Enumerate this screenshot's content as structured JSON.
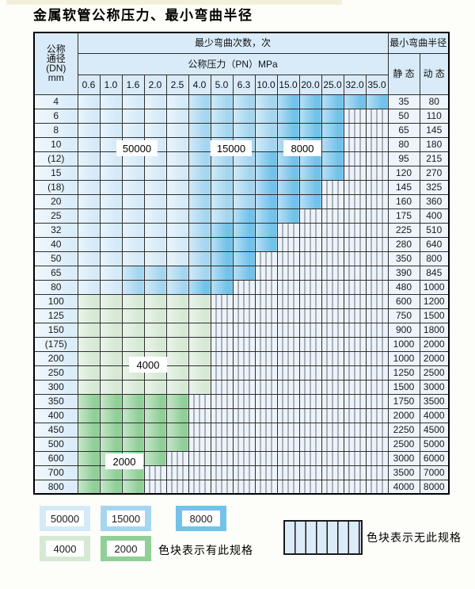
{
  "title": "金属软管公称压力、最小弯曲半径",
  "header": {
    "dn_lines": [
      "公称",
      "通径",
      "(DN)",
      "mm"
    ],
    "cycles_label": "最少弯曲次数，次",
    "pressure_label": "公称压力（PN）MPa",
    "radius_label": "最小弯曲半径",
    "static_label": "静 态",
    "dynamic_label": "动 态",
    "pressures": [
      "0.6",
      "1.0",
      "1.6",
      "2.0",
      "2.5",
      "4.0",
      "5.0",
      "6.3",
      "10.0",
      "15.0",
      "20.0",
      "25.0",
      "32.0",
      "35.0"
    ]
  },
  "zone_colors": {
    "b1": "#d5eaf8",
    "b2": "#a5d6f0",
    "b3": "#72c2ea",
    "g1": "#d6e9d5",
    "g2": "#90cf98"
  },
  "zone_meanings": {
    "b1": "50000",
    "b2": "15000",
    "b3": "8000",
    "g1": "4000",
    "g2": "2000",
    "h": "无此规格"
  },
  "rows": [
    {
      "dn": "4",
      "zones": [
        [
          "b1",
          5
        ],
        [
          "b2",
          4
        ],
        [
          "b3",
          5
        ]
      ],
      "static": "35",
      "dynamic": "80"
    },
    {
      "dn": "6",
      "zones": [
        [
          "b1",
          5
        ],
        [
          "b2",
          4
        ],
        [
          "b3",
          3
        ]
      ],
      "static": "50",
      "dynamic": "110"
    },
    {
      "dn": "8",
      "zones": [
        [
          "b1",
          5
        ],
        [
          "b2",
          4
        ],
        [
          "b3",
          3
        ]
      ],
      "static": "65",
      "dynamic": "145"
    },
    {
      "dn": "10",
      "zones": [
        [
          "b1",
          5
        ],
        [
          "b2",
          4
        ],
        [
          "b3",
          3
        ]
      ],
      "static": "80",
      "dynamic": "180"
    },
    {
      "dn": "(12)",
      "zones": [
        [
          "b1",
          5
        ],
        [
          "b2",
          3
        ],
        [
          "b3",
          4
        ]
      ],
      "static": "95",
      "dynamic": "215"
    },
    {
      "dn": "15",
      "zones": [
        [
          "b1",
          5
        ],
        [
          "b2",
          3
        ],
        [
          "b3",
          4
        ]
      ],
      "static": "120",
      "dynamic": "270"
    },
    {
      "dn": "(18)",
      "zones": [
        [
          "b1",
          5
        ],
        [
          "b2",
          3
        ],
        [
          "b3",
          3
        ]
      ],
      "static": "145",
      "dynamic": "325"
    },
    {
      "dn": "20",
      "zones": [
        [
          "b1",
          5
        ],
        [
          "b2",
          3
        ],
        [
          "b3",
          3
        ]
      ],
      "static": "160",
      "dynamic": "360"
    },
    {
      "dn": "25",
      "zones": [
        [
          "b1",
          5
        ],
        [
          "b2",
          2
        ],
        [
          "b3",
          3
        ]
      ],
      "static": "175",
      "dynamic": "400"
    },
    {
      "dn": "32",
      "zones": [
        [
          "b1",
          5
        ],
        [
          "b2",
          1
        ],
        [
          "b3",
          3
        ]
      ],
      "static": "225",
      "dynamic": "510"
    },
    {
      "dn": "40",
      "zones": [
        [
          "b1",
          5
        ],
        [
          "b2",
          1
        ],
        [
          "b3",
          3
        ]
      ],
      "static": "280",
      "dynamic": "640"
    },
    {
      "dn": "50",
      "zones": [
        [
          "b1",
          5
        ],
        [
          "b2",
          1
        ],
        [
          "b3",
          2
        ]
      ],
      "static": "350",
      "dynamic": "800"
    },
    {
      "dn": "65",
      "zones": [
        [
          "b1",
          2
        ],
        [
          "b2",
          4
        ],
        [
          "b3",
          2
        ]
      ],
      "static": "390",
      "dynamic": "845"
    },
    {
      "dn": "80",
      "zones": [
        [
          "b1",
          2
        ],
        [
          "b2",
          3
        ],
        [
          "b3",
          2
        ]
      ],
      "static": "480",
      "dynamic": "1000"
    },
    {
      "dn": "100",
      "zones": [
        [
          "g1",
          6
        ]
      ],
      "static": "600",
      "dynamic": "1200"
    },
    {
      "dn": "125",
      "zones": [
        [
          "g1",
          6
        ]
      ],
      "static": "750",
      "dynamic": "1500"
    },
    {
      "dn": "150",
      "zones": [
        [
          "g1",
          6
        ]
      ],
      "static": "900",
      "dynamic": "1800"
    },
    {
      "dn": "(175)",
      "zones": [
        [
          "g1",
          6
        ]
      ],
      "static": "1000",
      "dynamic": "2000"
    },
    {
      "dn": "200",
      "zones": [
        [
          "g1",
          6
        ]
      ],
      "static": "1000",
      "dynamic": "2000"
    },
    {
      "dn": "250",
      "zones": [
        [
          "g1",
          6
        ]
      ],
      "static": "1250",
      "dynamic": "2500"
    },
    {
      "dn": "300",
      "zones": [
        [
          "g1",
          6
        ]
      ],
      "static": "1500",
      "dynamic": "3000"
    },
    {
      "dn": "350",
      "zones": [
        [
          "g2",
          5
        ]
      ],
      "static": "1750",
      "dynamic": "3500"
    },
    {
      "dn": "400",
      "zones": [
        [
          "g2",
          5
        ]
      ],
      "static": "2000",
      "dynamic": "4000"
    },
    {
      "dn": "450",
      "zones": [
        [
          "g2",
          5
        ]
      ],
      "static": "2250",
      "dynamic": "4500"
    },
    {
      "dn": "500",
      "zones": [
        [
          "g2",
          5
        ]
      ],
      "static": "2500",
      "dynamic": "5000"
    },
    {
      "dn": "600",
      "zones": [
        [
          "g2",
          4
        ]
      ],
      "static": "3000",
      "dynamic": "6000"
    },
    {
      "dn": "700",
      "zones": [
        [
          "g2",
          3
        ]
      ],
      "static": "3500",
      "dynamic": "7000"
    },
    {
      "dn": "800",
      "zones": [
        [
          "g2",
          3
        ]
      ],
      "static": "4000",
      "dynamic": "8000"
    }
  ],
  "overlays": [
    "50000",
    "15000",
    "8000",
    "4000",
    "2000"
  ],
  "legend": {
    "row1": [
      {
        "value": "50000",
        "zone": "b1"
      },
      {
        "value": "15000",
        "zone": "b2"
      },
      {
        "value": "8000",
        "zone": "b3"
      }
    ],
    "row2": [
      {
        "value": "4000",
        "zone": "g1"
      },
      {
        "value": "2000",
        "zone": "g2"
      }
    ],
    "has_spec_text": "色块表示有此规格",
    "no_spec_text": "色块表示无此规格"
  }
}
